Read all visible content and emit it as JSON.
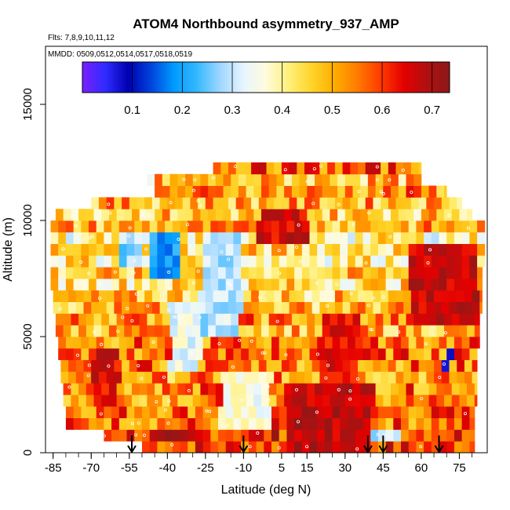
{
  "chart_data": {
    "type": "heatmap",
    "title": "ATOM4 Northbound asymmetry_937_AMP",
    "subtitle_lines": [
      "Flts: 7,8,9,10,11,12",
      "MMDD: 0509,0512,0514,0517,0518,0519"
    ],
    "xlabel": "Latitude (deg N)",
    "ylabel": "Altitude (m)",
    "xlim": [
      -88,
      86
    ],
    "ylim": [
      0,
      17500
    ],
    "x_ticks": [
      -85,
      -70,
      -55,
      -40,
      -25,
      -10,
      5,
      15,
      30,
      45,
      60,
      75
    ],
    "x_minor_step": 5,
    "y_ticks": [
      0,
      5000,
      10000,
      15000
    ],
    "colorbar": {
      "range": [
        0,
        0.735
      ],
      "ticks": [
        0.1,
        0.2,
        0.3,
        0.4,
        0.5,
        0.6,
        0.7
      ],
      "colors": [
        "#7a1fff",
        "#2f2cff",
        "#0000b0",
        "#0044dd",
        "#009cff",
        "#36b8ff",
        "#9ed6ff",
        "#e6f5ff",
        "#fffbdc",
        "#fff07a",
        "#ffd42a",
        "#ffac00",
        "#ff7a00",
        "#ff3a00",
        "#e40000",
        "#b01010",
        "#8c1818"
      ]
    },
    "arrow_latitudes": [
      -54,
      -10,
      39,
      45,
      67
    ],
    "bands": [
      {
        "alt": 250,
        "x0": -50,
        "x1": 81,
        "v": 0.6
      },
      {
        "alt": 750,
        "x0": -65,
        "x1": 81,
        "v": 0.62
      },
      {
        "alt": 1250,
        "x0": -80,
        "x1": 81,
        "v": 0.56
      },
      {
        "alt": 1750,
        "x0": -80,
        "x1": 81,
        "v": 0.57
      },
      {
        "alt": 2250,
        "x0": -81,
        "x1": 82,
        "v": 0.54
      },
      {
        "alt": 2750,
        "x0": -81,
        "x1": 82,
        "v": 0.55
      },
      {
        "alt": 3250,
        "x0": -82,
        "x1": 82,
        "v": 0.52
      },
      {
        "alt": 3750,
        "x0": -82,
        "x1": 82,
        "v": 0.55
      },
      {
        "alt": 4250,
        "x0": -83,
        "x1": 82,
        "v": 0.56
      },
      {
        "alt": 4750,
        "x0": -83,
        "x1": 83,
        "v": 0.55
      },
      {
        "alt": 5250,
        "x0": -84,
        "x1": 83,
        "v": 0.5
      },
      {
        "alt": 5750,
        "x0": -84,
        "x1": 83,
        "v": 0.53
      },
      {
        "alt": 6250,
        "x0": -85,
        "x1": 84,
        "v": 0.49
      },
      {
        "alt": 6750,
        "x0": -85,
        "x1": 84,
        "v": 0.47
      },
      {
        "alt": 7250,
        "x0": -86,
        "x1": 84,
        "v": 0.44
      },
      {
        "alt": 7750,
        "x0": -86,
        "x1": 84,
        "v": 0.46
      },
      {
        "alt": 8250,
        "x0": -86,
        "x1": 85,
        "v": 0.42
      },
      {
        "alt": 8750,
        "x0": -86,
        "x1": 85,
        "v": 0.45
      },
      {
        "alt": 9250,
        "x0": -86,
        "x1": 85,
        "v": 0.4
      },
      {
        "alt": 9750,
        "x0": -86,
        "x1": 85,
        "v": 0.5
      },
      {
        "alt": 10250,
        "x0": -84,
        "x1": 80,
        "v": 0.47
      },
      {
        "alt": 10750,
        "x0": -70,
        "x1": 76,
        "v": 0.5
      },
      {
        "alt": 11250,
        "x0": -45,
        "x1": 70,
        "v": 0.53
      },
      {
        "alt": 11750,
        "x0": -48,
        "x1": 60,
        "v": 0.48
      },
      {
        "alt": 12250,
        "x0": -22,
        "x1": 60,
        "v": 0.57
      }
    ],
    "patches": [
      {
        "x0": -28,
        "x1": -12,
        "y0": 5000,
        "y1": 9500,
        "v": 0.3
      },
      {
        "x0": -48,
        "x1": -36,
        "y0": 7500,
        "y1": 9500,
        "v": 0.2
      },
      {
        "x0": -40,
        "x1": -28,
        "y0": 3500,
        "y1": 6500,
        "v": 0.33
      },
      {
        "x0": -60,
        "x1": -50,
        "y0": 8000,
        "y1": 9500,
        "v": 0.28
      },
      {
        "x0": -65,
        "x1": -45,
        "y0": 11000,
        "y1": 12000,
        "v": 0.34
      },
      {
        "x0": -20,
        "x1": 0,
        "y0": 1000,
        "y1": 3500,
        "v": 0.36
      },
      {
        "x0": 40,
        "x1": 52,
        "y0": 500,
        "y1": 1000,
        "v": 0.3
      },
      {
        "x0": 68,
        "x1": 71,
        "y0": 3500,
        "y1": 4500,
        "v": 0.1
      },
      {
        "x0": 5,
        "x1": 40,
        "y0": 0,
        "y1": 3000,
        "v": 0.68
      },
      {
        "x0": 55,
        "x1": 82,
        "y0": 5500,
        "y1": 9000,
        "v": 0.67
      },
      {
        "x0": -5,
        "x1": 15,
        "y0": 9000,
        "y1": 10500,
        "v": 0.66
      },
      {
        "x0": 20,
        "x1": 35,
        "y0": 3000,
        "y1": 6000,
        "v": 0.64
      },
      {
        "x0": -70,
        "x1": -60,
        "y0": 2000,
        "y1": 4500,
        "v": 0.65
      }
    ]
  }
}
